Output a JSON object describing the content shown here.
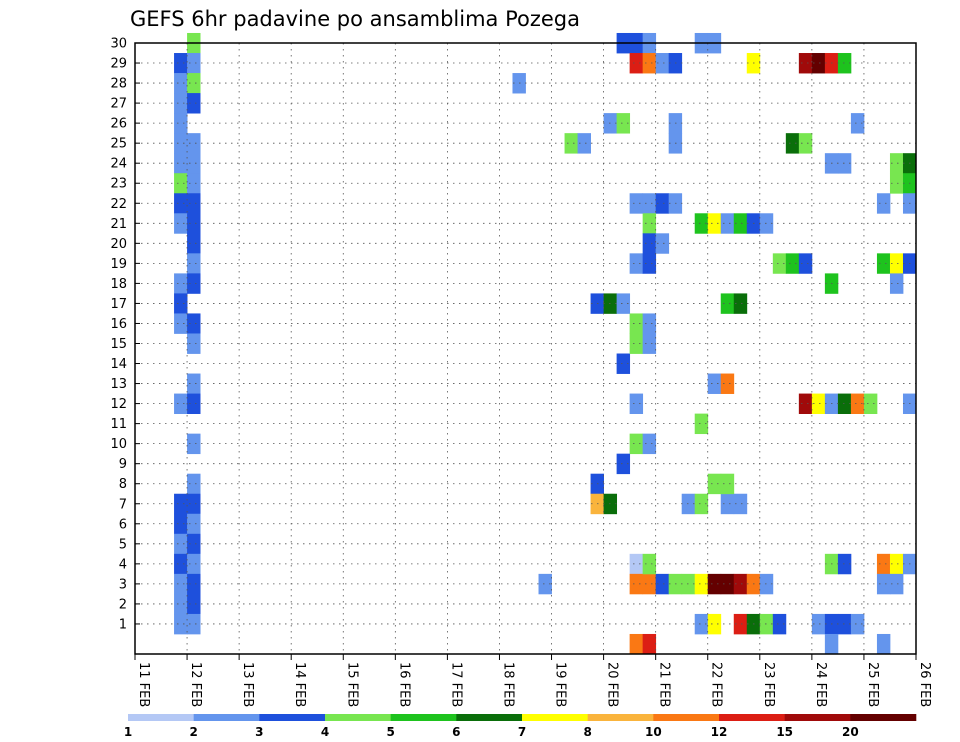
{
  "chart_data": {
    "type": "heatmap",
    "title": "GEFS 6hr padavine po ansamblima Pozega",
    "x_labels": [
      "11 FEB",
      "12 FEB",
      "13 FEB",
      "14 FEB",
      "15 FEB",
      "16 FEB",
      "17 FEB",
      "18 FEB",
      "19 FEB",
      "20 FEB",
      "21 FEB",
      "22 FEB",
      "23 FEB",
      "24 FEB",
      "25 FEB",
      "26 FEB"
    ],
    "y_labels": [
      "1",
      "2",
      "3",
      "4",
      "5",
      "6",
      "7",
      "8",
      "9",
      "10",
      "11",
      "12",
      "13",
      "14",
      "15",
      "16",
      "17",
      "18",
      "19",
      "20",
      "21",
      "22",
      "23",
      "24",
      "25",
      "26",
      "27",
      "28",
      "29",
      "30"
    ],
    "xlim": [
      0,
      60
    ],
    "ylim": [
      0,
      30
    ],
    "grid": true,
    "colorbar": {
      "labels": [
        "1",
        "2",
        "3",
        "4",
        "5",
        "6",
        "7",
        "8",
        "10",
        "12",
        "15",
        "20"
      ],
      "colors": [
        "#b4c8f5",
        "#6495ed",
        "#1e50dc",
        "#78e650",
        "#1ec31e",
        "#0a6e0a",
        "#ffff00",
        "#fab43c",
        "#fa7814",
        "#dc1e14",
        "#a00a0a",
        "#640000"
      ]
    },
    "cells": [
      [
        4,
        30,
        3
      ],
      [
        3,
        29,
        2
      ],
      [
        4,
        29,
        1
      ],
      [
        3,
        28,
        1
      ],
      [
        4,
        28,
        3
      ],
      [
        3,
        27,
        1
      ],
      [
        4,
        27,
        2
      ],
      [
        3,
        26,
        1
      ],
      [
        3,
        25,
        1
      ],
      [
        4,
        25,
        1
      ],
      [
        3,
        24,
        1
      ],
      [
        4,
        24,
        1
      ],
      [
        3,
        23,
        3
      ],
      [
        4,
        23,
        1
      ],
      [
        3,
        22,
        2
      ],
      [
        4,
        22,
        2
      ],
      [
        3,
        21,
        1
      ],
      [
        4,
        21,
        2
      ],
      [
        4,
        20,
        2
      ],
      [
        4,
        19,
        1
      ],
      [
        3,
        18,
        1
      ],
      [
        4,
        18,
        2
      ],
      [
        3,
        17,
        2
      ],
      [
        3,
        16,
        1
      ],
      [
        4,
        16,
        2
      ],
      [
        4,
        15,
        1
      ],
      [
        4,
        13,
        1
      ],
      [
        3,
        12,
        1
      ],
      [
        4,
        12,
        2
      ],
      [
        4,
        10,
        1
      ],
      [
        4,
        8,
        1
      ],
      [
        3,
        7,
        2
      ],
      [
        4,
        7,
        2
      ],
      [
        3,
        6,
        2
      ],
      [
        4,
        6,
        1
      ],
      [
        3,
        5,
        1
      ],
      [
        4,
        5,
        2
      ],
      [
        3,
        4,
        2
      ],
      [
        4,
        4,
        1
      ],
      [
        3,
        3,
        1
      ],
      [
        4,
        3,
        2
      ],
      [
        3,
        2,
        1
      ],
      [
        4,
        2,
        2
      ],
      [
        3,
        1,
        1
      ],
      [
        4,
        1,
        1
      ],
      [
        29,
        28,
        1
      ],
      [
        31,
        3,
        1
      ],
      [
        33,
        25,
        3
      ],
      [
        34,
        25,
        1
      ],
      [
        36,
        26,
        1
      ],
      [
        37,
        26,
        3
      ],
      [
        35,
        17,
        2
      ],
      [
        36,
        17,
        5
      ],
      [
        37,
        17,
        1
      ],
      [
        38,
        16,
        3
      ],
      [
        39,
        16,
        1
      ],
      [
        37,
        14,
        2
      ],
      [
        38,
        15,
        3
      ],
      [
        39,
        15,
        1
      ],
      [
        38,
        12,
        1
      ],
      [
        38,
        10,
        3
      ],
      [
        39,
        10,
        1
      ],
      [
        37,
        9,
        2
      ],
      [
        35,
        8,
        2
      ],
      [
        35,
        7,
        7
      ],
      [
        36,
        7,
        5
      ],
      [
        37,
        30,
        2
      ],
      [
        38,
        30,
        2
      ],
      [
        39,
        30,
        1
      ],
      [
        38,
        29,
        9
      ],
      [
        39,
        29,
        8
      ],
      [
        40,
        29,
        1
      ],
      [
        41,
        29,
        2
      ],
      [
        38,
        22,
        1
      ],
      [
        39,
        22,
        1
      ],
      [
        40,
        22,
        2
      ],
      [
        41,
        22,
        1
      ],
      [
        39,
        21,
        3
      ],
      [
        39,
        20,
        2
      ],
      [
        40,
        20,
        1
      ],
      [
        38,
        19,
        1
      ],
      [
        39,
        19,
        2
      ],
      [
        41,
        25,
        1
      ],
      [
        41,
        26,
        1
      ],
      [
        38,
        4,
        0
      ],
      [
        38,
        3,
        8
      ],
      [
        39,
        3,
        8
      ],
      [
        40,
        3,
        2
      ],
      [
        41,
        3,
        3
      ],
      [
        42,
        3,
        3
      ],
      [
        43,
        3,
        6
      ],
      [
        44,
        3,
        11
      ],
      [
        45,
        3,
        11
      ],
      [
        46,
        3,
        10
      ],
      [
        47,
        3,
        8
      ],
      [
        48,
        3,
        1
      ],
      [
        39,
        4,
        3
      ],
      [
        38,
        0,
        8
      ],
      [
        39,
        0,
        9
      ],
      [
        43,
        30,
        1
      ],
      [
        44,
        30,
        1
      ],
      [
        43,
        21,
        4
      ],
      [
        44,
        21,
        6
      ],
      [
        45,
        21,
        1
      ],
      [
        46,
        21,
        4
      ],
      [
        47,
        21,
        2
      ],
      [
        48,
        21,
        1
      ],
      [
        42,
        7,
        1
      ],
      [
        43,
        7,
        3
      ],
      [
        45,
        7,
        1
      ],
      [
        46,
        7,
        1
      ],
      [
        44,
        8,
        3
      ],
      [
        45,
        8,
        3
      ],
      [
        43,
        11,
        3
      ],
      [
        44,
        13,
        1
      ],
      [
        45,
        13,
        8
      ],
      [
        45,
        17,
        4
      ],
      [
        46,
        17,
        5
      ],
      [
        43,
        1,
        1
      ],
      [
        44,
        1,
        6
      ],
      [
        46,
        1,
        9
      ],
      [
        47,
        1,
        5
      ],
      [
        48,
        1,
        3
      ],
      [
        49,
        1,
        2
      ],
      [
        47,
        29,
        6
      ],
      [
        51,
        29,
        10
      ],
      [
        52,
        29,
        11
      ],
      [
        53,
        29,
        9
      ],
      [
        54,
        29,
        4
      ],
      [
        50,
        25,
        5
      ],
      [
        51,
        25,
        3
      ],
      [
        53,
        24,
        1
      ],
      [
        54,
        24,
        1
      ],
      [
        49,
        19,
        3
      ],
      [
        50,
        19,
        4
      ],
      [
        51,
        19,
        2
      ],
      [
        53,
        18,
        4
      ],
      [
        51,
        12,
        10
      ],
      [
        52,
        12,
        6
      ],
      [
        53,
        12,
        1
      ],
      [
        54,
        12,
        5
      ],
      [
        55,
        12,
        8
      ],
      [
        56,
        12,
        3
      ],
      [
        59,
        12,
        1
      ],
      [
        53,
        4,
        3
      ],
      [
        54,
        4,
        2
      ],
      [
        52,
        1,
        1
      ],
      [
        53,
        1,
        2
      ],
      [
        54,
        1,
        2
      ],
      [
        55,
        1,
        1
      ],
      [
        53,
        0,
        1
      ],
      [
        55,
        26,
        1
      ],
      [
        57,
        22,
        1
      ],
      [
        58,
        23,
        3
      ],
      [
        58,
        24,
        3
      ],
      [
        59,
        24,
        5
      ],
      [
        59,
        23,
        4
      ],
      [
        59,
        22,
        1
      ],
      [
        57,
        19,
        4
      ],
      [
        58,
        19,
        6
      ],
      [
        59,
        19,
        2
      ],
      [
        58,
        18,
        1
      ],
      [
        57,
        4,
        8
      ],
      [
        58,
        4,
        6
      ],
      [
        59,
        4,
        1
      ],
      [
        57,
        3,
        1
      ],
      [
        58,
        3,
        1
      ],
      [
        57,
        0,
        1
      ]
    ]
  }
}
